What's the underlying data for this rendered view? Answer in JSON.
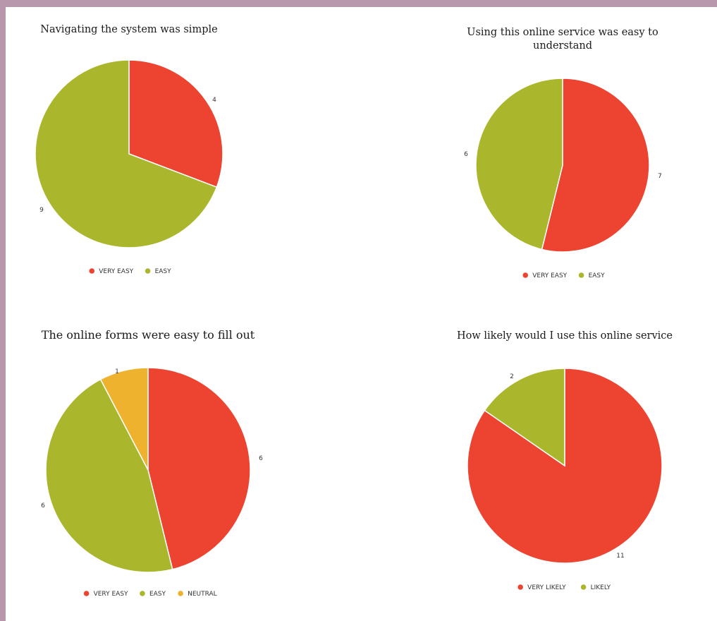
{
  "colors": {
    "very": "#ec4431",
    "easy": "#aab72c",
    "neutral": "#efb22e",
    "background_border": "#b896ab"
  },
  "chart_data": [
    {
      "type": "pie",
      "title_lines": [
        "Navigating the system was simple"
      ],
      "categories": [
        "VERY EASY",
        "EASY"
      ],
      "values": [
        4,
        9
      ],
      "legend": "bottom"
    },
    {
      "type": "pie",
      "title_lines": [
        "Using this online service was easy to",
        "understand"
      ],
      "categories": [
        "VERY EASY",
        "EASY"
      ],
      "values": [
        7,
        6
      ],
      "legend": "bottom"
    },
    {
      "type": "pie",
      "title_lines": [
        "The online forms were easy to fill out"
      ],
      "categories": [
        "VERY EASY",
        "EASY",
        "NEUTRAL"
      ],
      "values": [
        6,
        6,
        1
      ],
      "legend": "bottom"
    },
    {
      "type": "pie",
      "title_lines": [
        "How likely would I use this online service"
      ],
      "categories": [
        "VERY LIKELY",
        "LIKELY"
      ],
      "values": [
        11,
        2
      ],
      "legend": "bottom"
    }
  ]
}
